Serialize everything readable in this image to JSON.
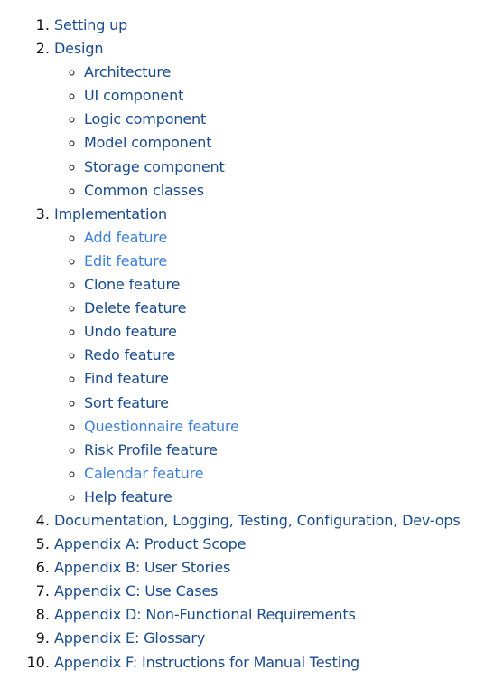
{
  "toc": {
    "items": [
      {
        "label": "Setting up"
      },
      {
        "label": "Design",
        "children": [
          {
            "label": "Architecture"
          },
          {
            "label": "UI component"
          },
          {
            "label": "Logic component"
          },
          {
            "label": "Model component"
          },
          {
            "label": "Storage component"
          },
          {
            "label": "Common classes"
          }
        ]
      },
      {
        "label": "Implementation",
        "children": [
          {
            "label": "Add feature"
          },
          {
            "label": "Edit feature"
          },
          {
            "label": "Clone feature"
          },
          {
            "label": "Delete feature"
          },
          {
            "label": "Undo feature"
          },
          {
            "label": "Redo feature"
          },
          {
            "label": "Find feature"
          },
          {
            "label": "Sort feature"
          },
          {
            "label": "Questionnaire feature"
          },
          {
            "label": "Risk Profile feature"
          },
          {
            "label": "Calendar feature"
          },
          {
            "label": "Help feature"
          }
        ]
      },
      {
        "label": "Documentation, Logging, Testing, Configuration, Dev-ops"
      },
      {
        "label": "Appendix A: Product Scope"
      },
      {
        "label": "Appendix B: User Stories"
      },
      {
        "label": "Appendix C: Use Cases"
      },
      {
        "label": "Appendix D: Non-Functional Requirements"
      },
      {
        "label": "Appendix E: Glossary"
      },
      {
        "label": "Appendix F: Instructions for Manual Testing"
      }
    ]
  },
  "colors": {
    "link": "#1a4a8c",
    "link_light": "#3d7fd4",
    "marker": "#111111",
    "background": "#ffffff"
  }
}
